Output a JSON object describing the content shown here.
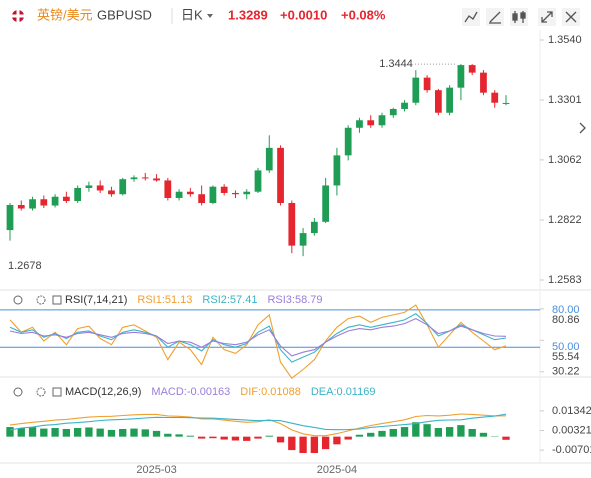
{
  "header": {
    "name": "英镑/美元",
    "symbol": "GBPUSD",
    "period": "日K",
    "price": "1.3289",
    "change": "+0.0010",
    "change_pct": "+0.08%"
  },
  "chart_data": [
    {
      "type": "candlestick",
      "up_color": "#1f9d55",
      "down_color": "#e5262f",
      "categories": [
        null,
        null,
        null,
        null,
        null,
        null,
        null,
        null,
        null,
        null,
        null,
        null,
        null,
        "2025-03",
        null,
        null,
        null,
        null,
        null,
        null,
        null,
        null,
        null,
        null,
        null,
        null,
        null,
        null,
        null,
        "2025-04",
        null,
        null,
        null,
        null,
        null,
        null,
        null,
        null,
        null,
        null,
        null,
        null,
        null,
        null,
        null
      ],
      "open": [
        1.2782,
        1.2882,
        1.2868,
        1.2905,
        1.288,
        1.2915,
        1.2898,
        1.295,
        1.296,
        1.294,
        1.2925,
        1.2985,
        1.2992,
        1.2988,
        1.298,
        1.291,
        1.2935,
        1.2925,
        1.289,
        1.2955,
        1.293,
        1.2925,
        1.2935,
        1.302,
        1.311,
        1.289,
        1.272,
        1.277,
        1.2815,
        1.296,
        1.308,
        1.319,
        1.322,
        1.32,
        1.324,
        1.3265,
        1.329,
        1.339,
        1.334,
        1.325,
        1.335,
        1.344,
        1.341,
        1.333,
        1.3285
      ],
      "high": [
        1.289,
        1.29,
        1.2915,
        1.292,
        1.2925,
        1.2935,
        1.296,
        1.2975,
        1.298,
        1.2955,
        1.299,
        1.3,
        1.301,
        1.3005,
        1.299,
        1.2945,
        1.295,
        1.296,
        1.296,
        1.2965,
        1.294,
        1.2945,
        1.303,
        1.316,
        1.312,
        1.29,
        1.279,
        1.283,
        1.299,
        1.311,
        1.32,
        1.323,
        1.324,
        1.325,
        1.327,
        1.33,
        1.342,
        1.34,
        1.3345,
        1.336,
        1.3444,
        1.3444,
        1.342,
        1.334,
        1.332
      ],
      "low": [
        1.274,
        1.286,
        1.286,
        1.287,
        1.2872,
        1.289,
        1.289,
        1.2935,
        1.293,
        1.2915,
        1.292,
        1.2975,
        1.298,
        1.2975,
        1.29,
        1.29,
        1.2915,
        1.288,
        1.2885,
        1.292,
        1.291,
        1.2905,
        1.293,
        1.301,
        1.288,
        1.269,
        1.2678,
        1.276,
        1.281,
        1.292,
        1.306,
        1.317,
        1.319,
        1.319,
        1.323,
        1.3255,
        1.328,
        1.333,
        1.324,
        1.324,
        1.33,
        1.34,
        1.332,
        1.327,
        1.328
      ],
      "close": [
        1.2882,
        1.2868,
        1.2905,
        1.288,
        1.2915,
        1.2898,
        1.295,
        1.296,
        1.294,
        1.2925,
        1.2985,
        1.2992,
        1.2988,
        1.298,
        1.291,
        1.2935,
        1.2925,
        1.289,
        1.2955,
        1.293,
        1.2925,
        1.2935,
        1.302,
        1.311,
        1.289,
        1.272,
        1.277,
        1.2815,
        1.296,
        1.308,
        1.319,
        1.322,
        1.32,
        1.324,
        1.3265,
        1.329,
        1.339,
        1.334,
        1.325,
        1.335,
        1.344,
        1.341,
        1.333,
        1.329,
        1.3289
      ],
      "high_label": 1.3444,
      "low_label": 1.2678,
      "ylim": [
        1.2551,
        1.3572
      ],
      "yticks": [
        {
          "value": 1.354,
          "label": "1.3540"
        },
        1.3301,
        1.3062,
        1.2822,
        1.2583
      ]
    },
    {
      "type": "line",
      "title": "RSI(7,14,21)",
      "series": [
        {
          "name": "RSI1:51.13",
          "color": "#f0a030",
          "values": [
            72,
            62,
            66,
            55,
            62,
            52,
            65,
            67,
            57,
            52,
            66,
            68,
            63,
            58,
            40,
            54,
            48,
            36,
            58,
            48,
            45,
            52,
            68,
            76,
            38,
            25,
            32,
            40,
            55,
            66,
            73,
            75,
            70,
            74,
            76,
            78,
            84,
            68,
            50,
            60,
            70,
            62,
            55,
            48,
            51.13
          ]
        },
        {
          "name": "RSI2:57.41",
          "color": "#3bb3c8",
          "values": [
            66,
            62,
            64,
            58,
            61,
            57,
            62,
            63,
            59,
            56,
            62,
            64,
            62,
            59,
            50,
            55,
            52,
            47,
            56,
            52,
            50,
            53,
            62,
            67,
            48,
            38,
            42,
            46,
            54,
            61,
            66,
            68,
            66,
            68,
            70,
            72,
            77,
            69,
            59,
            63,
            68,
            64,
            60,
            56,
            57.41
          ]
        },
        {
          "name": "RSI3:58.79",
          "color": "#9a7ddb",
          "values": [
            63,
            61,
            62,
            59,
            60,
            58,
            61,
            62,
            60,
            58,
            61,
            62,
            61,
            59,
            53,
            55,
            54,
            50,
            55,
            53,
            52,
            54,
            60,
            64,
            51,
            43,
            46,
            48,
            54,
            59,
            63,
            65,
            64,
            66,
            67,
            69,
            73,
            68,
            61,
            63,
            67,
            64,
            61,
            59,
            58.79
          ]
        }
      ],
      "reference_lines": [
        {
          "value": 80,
          "label": "80.00"
        },
        {
          "value": 50,
          "label": "50.00"
        }
      ],
      "reference_color": "#4a8fe0",
      "ylim": [
        26,
        88
      ],
      "yticks": [
        80.86,
        55.54,
        30.22
      ]
    },
    {
      "type": "bar",
      "title": "MACD(12,26,9)",
      "up_color": "#1f9d55",
      "down_color": "#e5262f",
      "series": [
        {
          "name": "MACD:-0.00163",
          "color": "#9a7ddb",
          "type": "bar",
          "values": [
            0.005,
            0.0045,
            0.005,
            0.0042,
            0.0045,
            0.004,
            0.0045,
            0.0048,
            0.0042,
            0.0035,
            0.004,
            0.0042,
            0.0038,
            0.003,
            0.0015,
            0.0012,
            0.0005,
            -0.001,
            -0.0008,
            -0.0015,
            -0.002,
            -0.0022,
            -0.001,
            0.0005,
            -0.003,
            -0.007,
            -0.0085,
            -0.0085,
            -0.0065,
            -0.004,
            -0.0015,
            0.001,
            0.002,
            0.003,
            0.004,
            0.005,
            0.0075,
            0.0065,
            0.0045,
            0.005,
            0.006,
            0.004,
            0.002,
            0.0002,
            -0.00163
          ]
        },
        {
          "name": "DIF:0.01088",
          "color": "#f0a030",
          "type": "line",
          "values": [
            0.006,
            0.0068,
            0.0075,
            0.008,
            0.0086,
            0.009,
            0.0096,
            0.0102,
            0.0105,
            0.0106,
            0.011,
            0.0114,
            0.0116,
            0.0116,
            0.0108,
            0.0106,
            0.0102,
            0.0092,
            0.0092,
            0.0086,
            0.008,
            0.0075,
            0.0078,
            0.0088,
            0.0068,
            0.0035,
            0.0015,
            0.0005,
            0.0005,
            0.0016,
            0.003,
            0.0045,
            0.0058,
            0.0068,
            0.0078,
            0.0088,
            0.0105,
            0.011,
            0.0108,
            0.0112,
            0.0118,
            0.0116,
            0.0112,
            0.0108,
            0.01088
          ]
        },
        {
          "name": "DEA:0.01169",
          "color": "#3bb3c8",
          "type": "line",
          "values": [
            0.0035,
            0.0045,
            0.005,
            0.0059,
            0.0063,
            0.007,
            0.0073,
            0.0078,
            0.0084,
            0.0088,
            0.009,
            0.0093,
            0.0097,
            0.0101,
            0.01,
            0.01,
            0.0099,
            0.0097,
            0.0096,
            0.0093,
            0.009,
            0.0086,
            0.0083,
            0.0085,
            0.0083,
            0.007,
            0.0057,
            0.0048,
            0.0038,
            0.0036,
            0.0037,
            0.004,
            0.0048,
            0.0053,
            0.0058,
            0.0063,
            0.0068,
            0.0078,
            0.0085,
            0.0087,
            0.0088,
            0.0096,
            0.0102,
            0.0107,
            0.01169
          ]
        }
      ],
      "ylim": [
        -0.0132,
        0.0217
      ],
      "yticks": [
        0.01342,
        0.00321,
        -0.00701
      ]
    }
  ]
}
